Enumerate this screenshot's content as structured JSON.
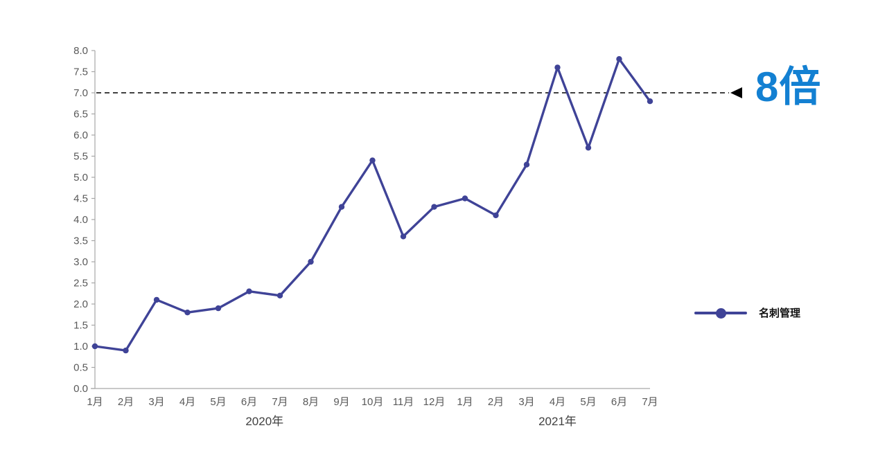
{
  "chart_data": {
    "type": "line",
    "title": "",
    "categories": [
      "1月",
      "2月",
      "3月",
      "4月",
      "5月",
      "6月",
      "7月",
      "8月",
      "9月",
      "10月",
      "11月",
      "12月",
      "1月",
      "2月",
      "3月",
      "4月",
      "5月",
      "6月",
      "7月"
    ],
    "series": [
      {
        "name": "名刺管理",
        "color": "#3F4397",
        "values": [
          1.0,
          0.9,
          2.1,
          1.8,
          1.9,
          2.3,
          2.2,
          3.0,
          4.3,
          5.4,
          3.6,
          4.3,
          4.5,
          4.1,
          5.3,
          7.6,
          5.7,
          7.8,
          6.8
        ]
      }
    ],
    "year_groups": [
      {
        "label": "2020年",
        "start": 0,
        "end": 11
      },
      {
        "label": "2021年",
        "start": 12,
        "end": 18
      }
    ],
    "ylim": [
      0.0,
      8.0
    ],
    "ytick_step": 0.5,
    "grid": false,
    "legend_position": "right",
    "axis_color": "#A6A6A6",
    "tick_label_color": "#595959",
    "year_label_color": "#404040",
    "reference_line": {
      "value": 7.0,
      "color": "#000000",
      "style": "dashed",
      "arrow_direction": "left"
    },
    "annotation": {
      "text": "8倍",
      "color": "#1380D2"
    },
    "legend": {
      "label": "名刺管理"
    }
  }
}
